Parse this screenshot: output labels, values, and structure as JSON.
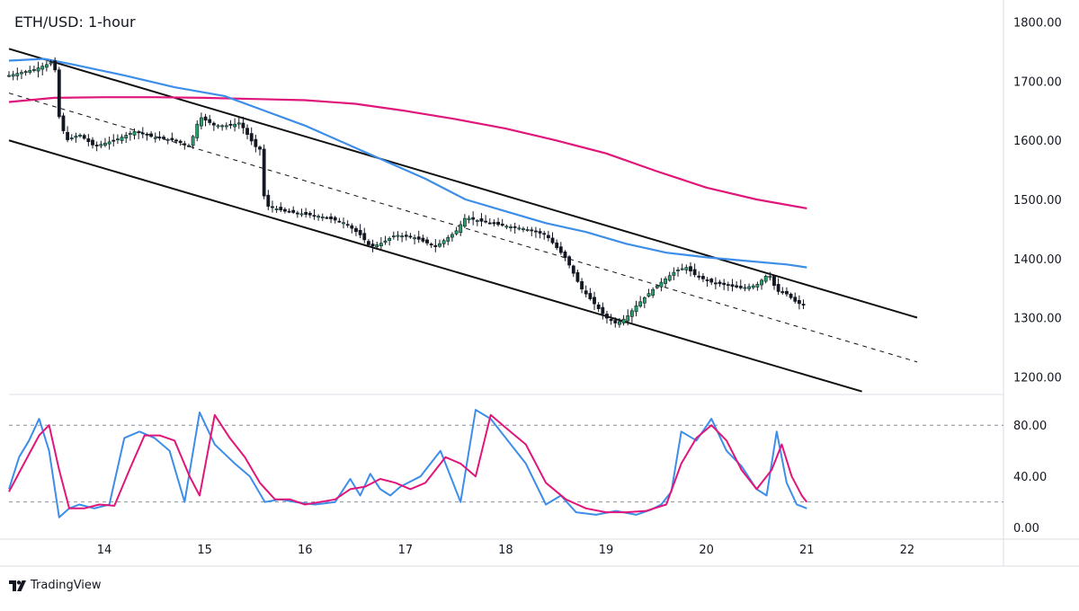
{
  "chart_data": [
    {
      "type": "candlestick",
      "title": "ETH/USD: 1-hour",
      "y_axis": {
        "ylim": [
          1170,
          1830
        ],
        "ticks": [
          "1800.00",
          "1700.00",
          "1600.00",
          "1500.00",
          "1400.00",
          "1300.00",
          "1200.00"
        ],
        "side": "right"
      },
      "x_axis": {
        "ticks": [
          "14",
          "15",
          "16",
          "17",
          "18",
          "19",
          "20",
          "21",
          "22"
        ],
        "range_days": [
          13.05,
          22.96
        ]
      },
      "grid": false,
      "colors": {
        "up": "#26a269",
        "down": "#131722",
        "wick": "#131722",
        "ma_fast": "#3d8ee8",
        "ma_slow": "#e0167a",
        "channel": "#111111",
        "k_line": "#3d8ee8",
        "d_line": "#e0167a"
      },
      "candle_close_path": {
        "x": [
          13.05,
          13.3,
          13.45,
          13.5,
          13.55,
          13.62,
          13.75,
          13.9,
          14.1,
          14.3,
          14.5,
          14.7,
          14.85,
          14.95,
          15.1,
          15.25,
          15.35,
          15.5,
          15.55,
          15.6,
          15.8,
          16.0,
          16.2,
          16.4,
          16.55,
          16.65,
          16.75,
          16.9,
          17.1,
          17.3,
          17.5,
          17.6,
          17.7,
          17.85,
          18.0,
          18.2,
          18.4,
          18.6,
          18.75,
          18.85,
          19.0,
          19.1,
          19.2,
          19.3,
          19.45,
          19.55,
          19.7,
          19.8,
          19.9,
          20.05,
          20.2,
          20.35,
          20.5,
          20.62,
          20.7,
          20.8,
          20.9,
          21.0
        ],
        "y": [
          1710,
          1720,
          1730,
          1735,
          1640,
          1600,
          1610,
          1590,
          1600,
          1615,
          1605,
          1600,
          1590,
          1640,
          1625,
          1625,
          1630,
          1590,
          1585,
          1490,
          1480,
          1475,
          1470,
          1460,
          1440,
          1420,
          1425,
          1440,
          1435,
          1420,
          1445,
          1470,
          1465,
          1460,
          1455,
          1450,
          1440,
          1400,
          1350,
          1330,
          1300,
          1290,
          1300,
          1320,
          1345,
          1360,
          1380,
          1385,
          1370,
          1360,
          1355,
          1350,
          1355,
          1375,
          1345,
          1340,
          1325,
          1320
        ]
      },
      "moving_average_fast": {
        "x": [
          13.05,
          13.4,
          13.7,
          14.2,
          14.7,
          15.2,
          15.6,
          16.0,
          16.4,
          16.8,
          17.2,
          17.6,
          18.0,
          18.4,
          18.8,
          19.2,
          19.6,
          20.0,
          20.4,
          20.8,
          21.0
        ],
        "y": [
          1735,
          1738,
          1728,
          1710,
          1690,
          1675,
          1650,
          1625,
          1595,
          1565,
          1535,
          1500,
          1480,
          1460,
          1445,
          1425,
          1410,
          1402,
          1396,
          1390,
          1385
        ]
      },
      "moving_average_slow": {
        "x": [
          13.05,
          13.5,
          14.0,
          14.5,
          15.0,
          15.5,
          16.0,
          16.5,
          17.0,
          17.5,
          18.0,
          18.5,
          19.0,
          19.5,
          20.0,
          20.5,
          21.0
        ],
        "y": [
          1665,
          1672,
          1673,
          1673,
          1672,
          1670,
          1668,
          1662,
          1650,
          1636,
          1620,
          1600,
          1578,
          1548,
          1520,
          1500,
          1485
        ]
      },
      "channel_lines": [
        {
          "style": "solid",
          "x": [
            13.05,
            22.1
          ],
          "y": [
            1755,
            1300
          ]
        },
        {
          "style": "dashed",
          "x": [
            13.05,
            22.1
          ],
          "y": [
            1680,
            1225
          ]
        },
        {
          "style": "solid",
          "x": [
            13.05,
            21.55
          ],
          "y": [
            1600,
            1175
          ]
        }
      ]
    },
    {
      "type": "line",
      "title": "",
      "y_axis": {
        "ylim": [
          -2,
          104
        ],
        "ticks": [
          "80.00",
          "40.00",
          "0.00"
        ],
        "side": "right"
      },
      "levels": [
        80,
        20
      ],
      "series": [
        {
          "x": [
            13.05,
            13.15,
            13.25,
            13.35,
            13.45,
            13.55,
            13.65,
            13.75,
            13.9,
            14.05,
            14.2,
            14.35,
            14.5,
            14.65,
            14.8,
            14.95,
            15.1,
            15.3,
            15.45,
            15.6,
            15.75,
            15.9,
            16.1,
            16.3,
            16.45,
            16.55,
            16.65,
            16.75,
            16.85,
            16.95,
            17.15,
            17.35,
            17.55,
            17.7,
            17.85,
            18.0,
            18.2,
            18.4,
            18.55,
            18.7,
            18.9,
            19.1,
            19.3,
            19.45,
            19.55,
            19.65,
            19.75,
            19.9,
            20.05,
            20.2,
            20.35,
            20.5,
            20.6,
            20.7,
            20.8,
            20.9,
            21.0
          ],
          "values": [
            30,
            55,
            68,
            85,
            60,
            8,
            15,
            18,
            15,
            18,
            70,
            75,
            70,
            60,
            20,
            90,
            65,
            50,
            40,
            20,
            22,
            20,
            18,
            20,
            38,
            25,
            42,
            30,
            25,
            32,
            40,
            60,
            20,
            92,
            85,
            70,
            50,
            18,
            25,
            12,
            10,
            13,
            10,
            14,
            18,
            28,
            75,
            68,
            85,
            60,
            48,
            30,
            25,
            75,
            35,
            18,
            15
          ]
        },
        {
          "x": [
            13.05,
            13.2,
            13.35,
            13.45,
            13.55,
            13.65,
            13.8,
            13.95,
            14.1,
            14.25,
            14.4,
            14.55,
            14.7,
            14.85,
            14.95,
            15.1,
            15.25,
            15.4,
            15.55,
            15.7,
            15.85,
            16.0,
            16.15,
            16.3,
            16.45,
            16.6,
            16.75,
            16.9,
            17.05,
            17.2,
            17.4,
            17.55,
            17.7,
            17.85,
            18.0,
            18.2,
            18.4,
            18.6,
            18.8,
            19.0,
            19.2,
            19.4,
            19.6,
            19.75,
            19.9,
            20.05,
            20.2,
            20.35,
            20.5,
            20.65,
            20.75,
            20.85,
            20.95,
            21.0
          ],
          "values": [
            28,
            50,
            72,
            80,
            45,
            15,
            15,
            18,
            17,
            45,
            72,
            72,
            68,
            40,
            25,
            88,
            70,
            55,
            35,
            22,
            22,
            18,
            20,
            22,
            30,
            32,
            38,
            35,
            30,
            35,
            55,
            50,
            40,
            88,
            78,
            65,
            35,
            22,
            15,
            12,
            12,
            13,
            18,
            50,
            70,
            80,
            68,
            45,
            30,
            45,
            65,
            40,
            25,
            20
          ]
        }
      ]
    }
  ],
  "branding": {
    "logo_text": "TradingView"
  }
}
